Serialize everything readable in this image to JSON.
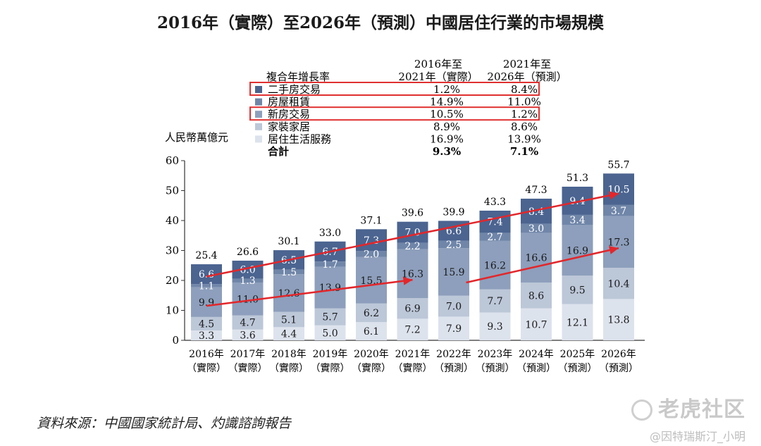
{
  "chart_data": {
    "type": "bar",
    "stacked": true,
    "title": "2016年（實際）至2026年（預測）中國居住行業的市場規模",
    "ylabel": "人民幣萬億元",
    "ylim": [
      0,
      60
    ],
    "yticks": [
      "0",
      "10",
      "20",
      "30",
      "40",
      "50",
      "60"
    ],
    "categories": [
      [
        "2016年",
        "（實際）"
      ],
      [
        "2017年",
        "（實際）"
      ],
      [
        "2018年",
        "（實際）"
      ],
      [
        "2019年",
        "（實際）"
      ],
      [
        "2020年",
        "（實際）"
      ],
      [
        "2021年",
        "（實際）"
      ],
      [
        "2022年",
        "（預測）"
      ],
      [
        "2023年",
        "（預測）"
      ],
      [
        "2024年",
        "（預測）"
      ],
      [
        "2025年",
        "（預測）"
      ],
      [
        "2026年",
        "（預測）"
      ]
    ],
    "series": [
      {
        "name": "居住生活服務",
        "color": "#dde3ed",
        "values": [
          3.3,
          3.6,
          4.4,
          5.0,
          6.1,
          7.2,
          7.9,
          9.3,
          10.7,
          12.1,
          13.8
        ]
      },
      {
        "name": "家裝家居",
        "color": "#bcc7d8",
        "values": [
          4.5,
          4.7,
          5.1,
          5.7,
          6.2,
          6.9,
          7.0,
          7.7,
          8.6,
          9.5,
          10.4
        ]
      },
      {
        "name": "新房交易",
        "color": "#8d9fbc",
        "values": [
          9.9,
          11.0,
          12.6,
          13.9,
          15.5,
          16.3,
          15.9,
          16.2,
          16.6,
          16.9,
          17.3
        ]
      },
      {
        "name": "房屋租賃",
        "color": "#7086a9",
        "values": [
          1.1,
          1.3,
          1.5,
          1.7,
          2.0,
          2.2,
          2.5,
          2.7,
          3.0,
          3.4,
          3.7
        ]
      },
      {
        "name": "二手房交易",
        "color": "#4b6490",
        "values": [
          6.6,
          6.0,
          6.5,
          6.7,
          7.3,
          7.0,
          6.6,
          7.4,
          8.4,
          9.4,
          10.5
        ]
      }
    ],
    "totals": [
      "25.4",
      "26.6",
      "30.1",
      "33.0",
      "37.1",
      "39.6",
      "39.9",
      "43.3",
      "47.3",
      "51.3",
      "55.7"
    ],
    "cagr_table": {
      "label": "複合年增長率",
      "col1_header": [
        "2016年至",
        "2021年（實際）"
      ],
      "col2_header": [
        "2021年至",
        "2026年（預測）"
      ],
      "rows": [
        {
          "name": "二手房交易",
          "color": "#4b6490",
          "v1": "1.2%",
          "v2": "8.4%",
          "highlighted": true
        },
        {
          "name": "房屋租賃",
          "color": "#7086a9",
          "v1": "14.9%",
          "v2": "11.0%",
          "highlighted": false
        },
        {
          "name": "新房交易",
          "color": "#8d9fbc",
          "v1": "10.5%",
          "v2": "1.2%",
          "highlighted": true
        },
        {
          "name": "家裝家居",
          "color": "#bcc7d8",
          "v1": "8.9%",
          "v2": "8.6%",
          "highlighted": false
        },
        {
          "name": "居住生活服務",
          "color": "#dde3ed",
          "v1": "16.9%",
          "v2": "13.9%",
          "highlighted": false
        }
      ],
      "total": {
        "name": "合計",
        "v1": "9.3%",
        "v2": "7.1%"
      }
    },
    "colors": {
      "highlight_box": "#e03030",
      "trend_arrow": "#e3262a",
      "text_on_dark": "#ffffff",
      "text_on_light": "#1a1a1a"
    }
  },
  "source": "資料來源：中國國家統計局、灼識諮詢報告",
  "watermark": {
    "logo": "老虎社区",
    "user": "@因特瑞斯汀_小明"
  }
}
